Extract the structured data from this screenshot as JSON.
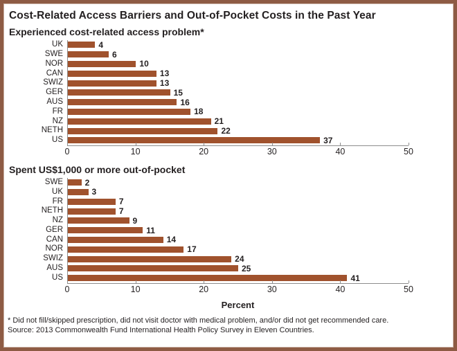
{
  "title": "Cost-Related Access Barriers and Out-of-Pocket Costs in the Past Year",
  "footnote": "* Did not fill/skipped prescription, did not visit doctor with medical problem, and/or did not get recommended care.",
  "source": "Source: 2013 Commonwealth Fund International Health Policy Survey in Eleven Countries.",
  "colors": {
    "bar": "#A0522D",
    "frame": "#8E5B44",
    "axis": "#8C8C8C",
    "text": "#231F20"
  },
  "chart_data": [
    {
      "type": "bar",
      "orientation": "horizontal",
      "title": "Experienced cost-related access problem*",
      "categories": [
        "UK",
        "SWE",
        "NOR",
        "CAN",
        "SWIZ",
        "GER",
        "AUS",
        "FR",
        "NZ",
        "NETH",
        "US"
      ],
      "values": [
        4,
        6,
        10,
        13,
        13,
        15,
        16,
        18,
        21,
        22,
        37
      ],
      "xlim": [
        0,
        50
      ],
      "xticks": [
        0,
        10,
        20,
        30,
        40,
        50
      ],
      "xlabel": "",
      "grid": false,
      "data_labels": true
    },
    {
      "type": "bar",
      "orientation": "horizontal",
      "title": "Spent US$1,000 or more out-of-pocket",
      "categories": [
        "SWE",
        "UK",
        "FR",
        "NETH",
        "NZ",
        "GER",
        "CAN",
        "NOR",
        "SWIZ",
        "AUS",
        "US"
      ],
      "values": [
        2,
        3,
        7,
        7,
        9,
        11,
        14,
        17,
        24,
        25,
        41
      ],
      "xlim": [
        0,
        50
      ],
      "xticks": [
        0,
        10,
        20,
        30,
        40,
        50
      ],
      "xlabel": "Percent",
      "grid": false,
      "data_labels": true
    }
  ]
}
